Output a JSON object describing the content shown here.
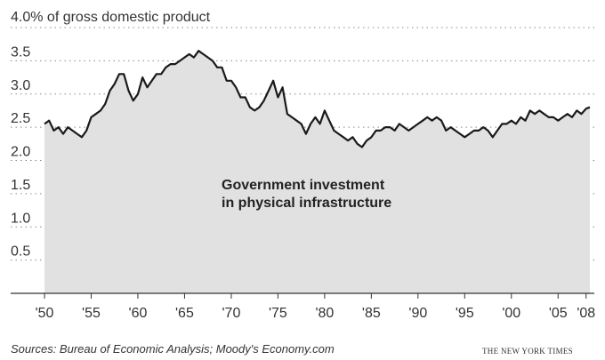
{
  "chart_data": {
    "type": "area",
    "ytop_label": "4.0% of gross domestic product",
    "yticks": [
      {
        "value": 3.5,
        "label": "3.5"
      },
      {
        "value": 3.0,
        "label": "3.0"
      },
      {
        "value": 2.5,
        "label": "2.5"
      },
      {
        "value": 2.0,
        "label": "2.0"
      },
      {
        "value": 1.5,
        "label": "1.5"
      },
      {
        "value": 1.0,
        "label": "1.0"
      },
      {
        "value": 0.5,
        "label": "0.5"
      }
    ],
    "xticks": [
      {
        "value": 1950,
        "label": "'50"
      },
      {
        "value": 1955,
        "label": "'55"
      },
      {
        "value": 1960,
        "label": "'60"
      },
      {
        "value": 1965,
        "label": "'65"
      },
      {
        "value": 1970,
        "label": "'70"
      },
      {
        "value": 1975,
        "label": "'75"
      },
      {
        "value": 1980,
        "label": "'80"
      },
      {
        "value": 1985,
        "label": "'85"
      },
      {
        "value": 1990,
        "label": "'90"
      },
      {
        "value": 1995,
        "label": "'95"
      },
      {
        "value": 2000,
        "label": "'00"
      },
      {
        "value": 2005,
        "label": "'05"
      },
      {
        "value": 2008,
        "label": "'08"
      }
    ],
    "xlim": [
      1950,
      2008.5
    ],
    "ylim": [
      0,
      4.0
    ],
    "annotation_line1": "Government investment",
    "annotation_line2": "in physical infrastructure",
    "series": [
      {
        "x": [
          1950.0,
          1950.5,
          1951.0,
          1951.5,
          1952.0,
          1952.5,
          1953.0,
          1953.5,
          1954.0,
          1954.5,
          1955.0,
          1955.5,
          1956.0,
          1956.5,
          1957.0,
          1957.5,
          1958.0,
          1958.5,
          1959.0,
          1959.5,
          1960.0,
          1960.5,
          1961.0,
          1961.5,
          1962.0,
          1962.5,
          1963.0,
          1963.5,
          1964.0,
          1964.5,
          1965.0,
          1965.5,
          1966.0,
          1966.5,
          1967.0,
          1967.5,
          1968.0,
          1968.5,
          1969.0,
          1969.5,
          1970.0,
          1970.5,
          1971.0,
          1971.5,
          1972.0,
          1972.5,
          1973.0,
          1973.5,
          1974.0,
          1974.5,
          1975.0,
          1975.5,
          1976.0,
          1976.5,
          1977.0,
          1977.5,
          1978.0,
          1978.5,
          1979.0,
          1979.5,
          1980.0,
          1980.5,
          1981.0,
          1981.5,
          1982.0,
          1982.5,
          1983.0,
          1983.5,
          1984.0,
          1984.5,
          1985.0,
          1985.5,
          1986.0,
          1986.5,
          1987.0,
          1987.5,
          1988.0,
          1988.5,
          1989.0,
          1989.5,
          1990.0,
          1990.5,
          1991.0,
          1991.5,
          1992.0,
          1992.5,
          1993.0,
          1993.5,
          1994.0,
          1994.5,
          1995.0,
          1995.5,
          1996.0,
          1996.5,
          1997.0,
          1997.5,
          1998.0,
          1998.5,
          1999.0,
          1999.5,
          2000.0,
          2000.5,
          2001.0,
          2001.5,
          2002.0,
          2002.5,
          2003.0,
          2003.5,
          2004.0,
          2004.5,
          2005.0,
          2005.5,
          2006.0,
          2006.5,
          2007.0,
          2007.5,
          2008.0,
          2008.4
        ],
        "y": [
          2.55,
          2.6,
          2.45,
          2.5,
          2.4,
          2.5,
          2.45,
          2.4,
          2.35,
          2.45,
          2.65,
          2.7,
          2.75,
          2.85,
          3.05,
          3.15,
          3.3,
          3.3,
          3.05,
          2.9,
          3.0,
          3.25,
          3.1,
          3.2,
          3.3,
          3.3,
          3.4,
          3.45,
          3.45,
          3.5,
          3.55,
          3.6,
          3.55,
          3.65,
          3.6,
          3.55,
          3.5,
          3.4,
          3.4,
          3.2,
          3.2,
          3.1,
          2.95,
          2.95,
          2.8,
          2.75,
          2.8,
          2.9,
          3.05,
          3.2,
          2.95,
          3.1,
          2.7,
          2.65,
          2.6,
          2.55,
          2.4,
          2.55,
          2.65,
          2.55,
          2.75,
          2.6,
          2.45,
          2.4,
          2.35,
          2.3,
          2.35,
          2.25,
          2.2,
          2.3,
          2.35,
          2.45,
          2.45,
          2.5,
          2.5,
          2.45,
          2.55,
          2.5,
          2.45,
          2.5,
          2.55,
          2.6,
          2.65,
          2.6,
          2.65,
          2.6,
          2.45,
          2.5,
          2.45,
          2.4,
          2.35,
          2.4,
          2.45,
          2.45,
          2.5,
          2.45,
          2.35,
          2.45,
          2.55,
          2.55,
          2.6,
          2.55,
          2.65,
          2.6,
          2.75,
          2.7,
          2.75,
          2.7,
          2.65,
          2.65,
          2.6,
          2.65,
          2.7,
          2.65,
          2.75,
          2.7,
          2.78,
          2.8
        ]
      }
    ]
  },
  "footer": {
    "sources": "Sources: Bureau of Economic Analysis; Moody's Economy.com",
    "credit": "THE NEW YORK TIMES"
  }
}
